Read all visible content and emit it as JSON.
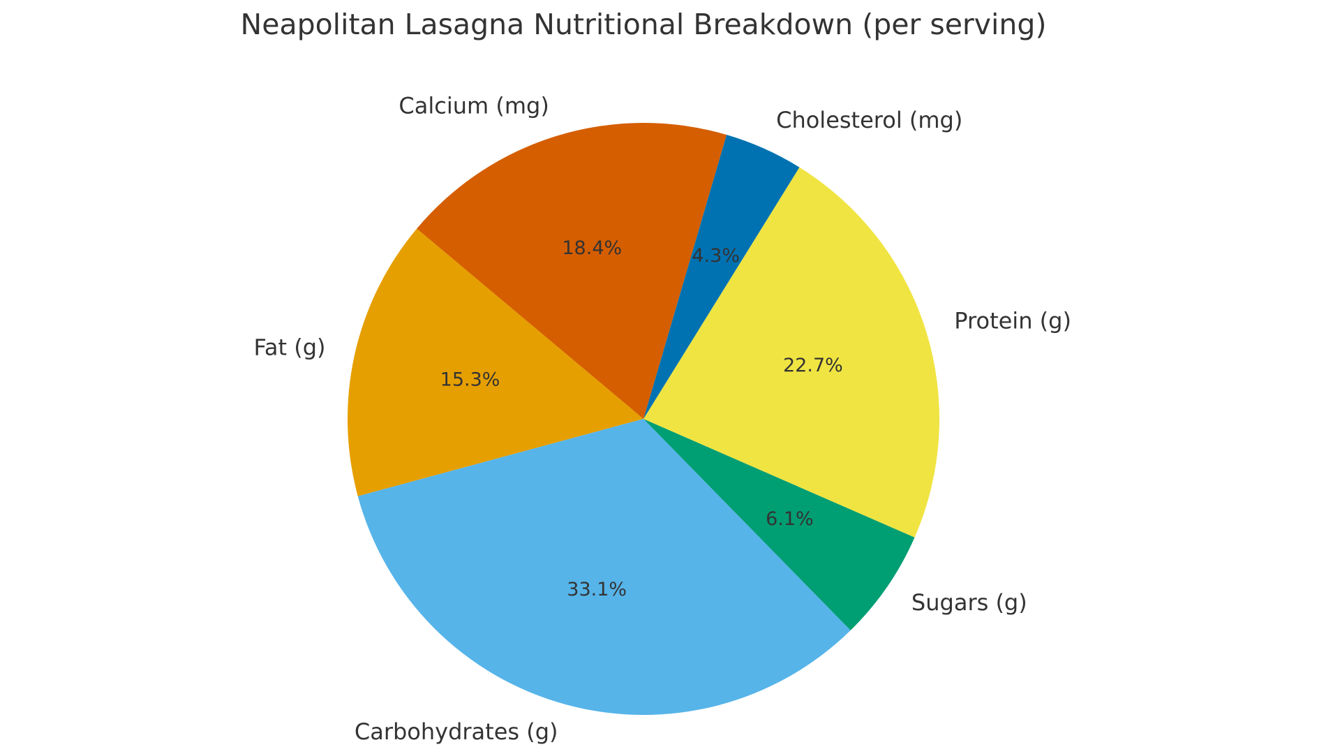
{
  "chart_data": {
    "type": "pie",
    "title": "Neapolitan Lasagna Nutritional Breakdown (per serving)",
    "categories": [
      "Fat (g)",
      "Carbohydrates (g)",
      "Sugars (g)",
      "Protein (g)",
      "Cholesterol (mg)",
      "Calcium (mg)"
    ],
    "values": [
      15.3,
      33.1,
      6.1,
      22.7,
      4.3,
      18.4
    ],
    "value_labels": [
      "15.3%",
      "33.1%",
      "6.1%",
      "22.7%",
      "4.3%",
      "18.4%"
    ],
    "colors": [
      "#E69F00",
      "#56B4E9",
      "#009E73",
      "#F0E442",
      "#0072B2",
      "#D55E00"
    ]
  }
}
